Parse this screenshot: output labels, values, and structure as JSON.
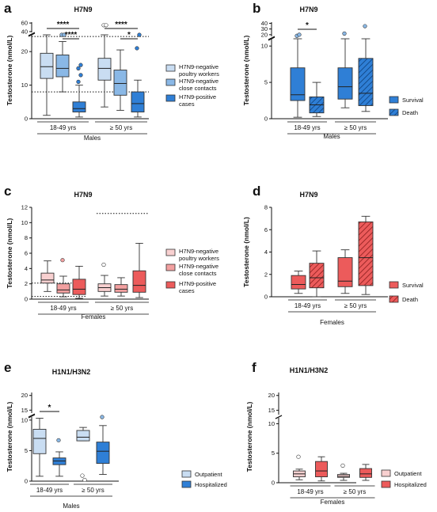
{
  "colors": {
    "blue_light": "#c9ddf2",
    "blue_mid": "#8ab8e6",
    "blue_dark": "#2f7fd6",
    "red_light": "#f8d0d0",
    "red_mid": "#f2a0a0",
    "red_dark": "#ec5b5b",
    "axis": "#111111"
  },
  "chart_data": [
    {
      "panel": "a",
      "type": "box",
      "title": "H7N9",
      "ylabel": "Testosterone (nmol/L)",
      "sex": "Males",
      "yticks_lower": [
        0,
        10,
        20
      ],
      "yticks_upper": [
        40,
        60
      ],
      "groups": [
        "18-49 yrs",
        "≥ 50 yrs"
      ],
      "series_labels": [
        "H7N9-negative poultry workers",
        "H7N9-negative close contacts",
        "H7N9-positive cases"
      ],
      "reference_lines": [
        24.5,
        8
      ],
      "significance": [
        {
          "text": "****",
          "between": [
            "18-49 yrs H7N9-negative poultry workers",
            "18-49 yrs H7N9-positive cases"
          ]
        },
        {
          "text": "****",
          "between": [
            "18-49 yrs H7N9-negative close contacts",
            "18-49 yrs H7N9-positive cases"
          ]
        },
        {
          "text": "****",
          "between": [
            "≥ 50 yrs H7N9-negative poultry workers",
            "≥ 50 yrs H7N9-positive cases"
          ]
        },
        {
          "text": "*",
          "between": [
            "≥ 50 yrs H7N9-negative close contacts",
            "≥ 50 yrs H7N9-positive cases"
          ]
        }
      ],
      "boxes": [
        {
          "group": 0,
          "series": 0,
          "min": 1,
          "q1": 12,
          "median": 15.5,
          "q3": 19.5,
          "max": 28.5,
          "outliers": []
        },
        {
          "group": 0,
          "series": 1,
          "min": 8,
          "q1": 12.5,
          "median": 15,
          "q3": 19,
          "max": 23,
          "outliers": [
            34,
            37
          ]
        },
        {
          "group": 0,
          "series": 2,
          "min": 0.5,
          "q1": 2,
          "median": 3,
          "q3": 5,
          "max": 10,
          "outliers": [
            11,
            13,
            15,
            16
          ]
        },
        {
          "group": 1,
          "series": 0,
          "min": 3.5,
          "q1": 11.5,
          "median": 15,
          "q3": 18,
          "max": 32,
          "outliers": [
            55,
            55
          ]
        },
        {
          "group": 1,
          "series": 1,
          "min": 2.5,
          "q1": 7,
          "median": 10.5,
          "q3": 14.5,
          "max": 20.5,
          "outliers": []
        },
        {
          "group": 1,
          "series": 2,
          "min": 0.5,
          "q1": 2,
          "median": 4.5,
          "q3": 8,
          "max": 11.5,
          "outliers": [
            21,
            36
          ]
        }
      ]
    },
    {
      "panel": "b",
      "type": "box",
      "title": "H7N9",
      "ylabel": "Testosterone (nmol/L)",
      "sex": "Males",
      "yticks_lower": [
        0,
        5,
        10
      ],
      "yticks_upper": [
        20,
        30,
        40
      ],
      "groups": [
        "18-49 yrs",
        "≥ 50 yrs"
      ],
      "series_labels": [
        "Survival",
        "Death"
      ],
      "significance": [
        {
          "text": "*",
          "between": [
            "18-49 yrs Survival",
            "18-49 yrs Death"
          ]
        }
      ],
      "boxes": [
        {
          "group": 0,
          "series": 0,
          "min": 0.2,
          "q1": 2.5,
          "median": 3.3,
          "q3": 7,
          "max": 11,
          "outliers": [
            18,
            20
          ]
        },
        {
          "group": 0,
          "series": 1,
          "min": 0.3,
          "q1": 0.8,
          "median": 1.9,
          "q3": 3,
          "max": 5,
          "outliers": []
        },
        {
          "group": 1,
          "series": 0,
          "min": 1.5,
          "q1": 2.7,
          "median": 4.4,
          "q3": 7,
          "max": 11,
          "outliers": [
            22
          ]
        },
        {
          "group": 1,
          "series": 1,
          "min": 1,
          "q1": 1.8,
          "median": 3.5,
          "q3": 8.3,
          "max": 14,
          "outliers": [
            35
          ]
        }
      ]
    },
    {
      "panel": "c",
      "type": "box",
      "title": "H7N9",
      "ylabel": "Testosterone (nmol/L)",
      "sex": "Females",
      "yticks": [
        0,
        2,
        4,
        6,
        8,
        10,
        12
      ],
      "ylim": [
        0,
        12
      ],
      "groups": [
        "18-49 yrs",
        "≥ 50 yrs"
      ],
      "series_labels": [
        "H7N9-negative poultry workers",
        "H7N9-negative close contacts",
        "H7N9-positive cases"
      ],
      "reference_lines_left": [
        2.1,
        0.35
      ],
      "reference_lines_right": [
        11.2
      ],
      "boxes": [
        {
          "group": 0,
          "series": 0,
          "min": 1,
          "q1": 2.1,
          "median": 2.5,
          "q3": 3.4,
          "max": 5,
          "outliers": []
        },
        {
          "group": 0,
          "series": 1,
          "min": 0.3,
          "q1": 0.8,
          "median": 1.2,
          "q3": 2,
          "max": 3,
          "outliers": [
            5.1
          ]
        },
        {
          "group": 0,
          "series": 2,
          "min": 0.1,
          "q1": 0.6,
          "median": 1.3,
          "q3": 2.6,
          "max": 4.3,
          "outliers": []
        },
        {
          "group": 1,
          "series": 0,
          "min": 0.4,
          "q1": 1,
          "median": 1.5,
          "q3": 2,
          "max": 3.1,
          "outliers": [
            4.5
          ]
        },
        {
          "group": 1,
          "series": 1,
          "min": 0.4,
          "q1": 0.9,
          "median": 1.3,
          "q3": 1.9,
          "max": 2.8,
          "outliers": []
        },
        {
          "group": 1,
          "series": 2,
          "min": 0.2,
          "q1": 0.9,
          "median": 1.8,
          "q3": 3.7,
          "max": 7.3,
          "outliers": []
        }
      ]
    },
    {
      "panel": "d",
      "type": "box",
      "title": "H7N9",
      "ylabel": "Testosterone (nmol/L)",
      "sex": "Females",
      "yticks": [
        0,
        2,
        4,
        6,
        8
      ],
      "ylim": [
        0,
        8
      ],
      "groups": [
        "18-49 yrs",
        "≥ 50 yrs"
      ],
      "series_labels": [
        "Survival",
        "Death"
      ],
      "boxes": [
        {
          "group": 0,
          "series": 0,
          "min": 0.3,
          "q1": 0.7,
          "median": 1.1,
          "q3": 1.9,
          "max": 2.3,
          "outliers": []
        },
        {
          "group": 0,
          "series": 1,
          "min": 0,
          "q1": 0.8,
          "median": 1.7,
          "q3": 3,
          "max": 4.1,
          "outliers": []
        },
        {
          "group": 1,
          "series": 0,
          "min": 0.3,
          "q1": 0.9,
          "median": 1.4,
          "q3": 3.5,
          "max": 4.2,
          "outliers": []
        },
        {
          "group": 1,
          "series": 1,
          "min": 0.2,
          "q1": 1,
          "median": 3.5,
          "q3": 6.7,
          "max": 7.2,
          "outliers": []
        }
      ]
    },
    {
      "panel": "e",
      "type": "box",
      "title": "H1N1/H3N2",
      "ylabel": "Testosterone (nmol/L)",
      "sex": "Males",
      "yticks_lower": [
        0,
        5,
        10
      ],
      "yticks_upper": [
        15,
        20
      ],
      "groups": [
        "18-49 yrs",
        "≥ 50 yrs"
      ],
      "series_labels": [
        "Outpatient",
        "Hospitalized"
      ],
      "significance": [
        {
          "text": "*",
          "between": [
            "18-49 yrs Outpatient",
            "18-49 yrs Hospitalized"
          ]
        }
      ],
      "boxes": [
        {
          "group": 0,
          "series": 0,
          "min": 0.8,
          "q1": 4.5,
          "median": 7,
          "q3": 8.5,
          "max": 10.3,
          "outliers": []
        },
        {
          "group": 0,
          "series": 1,
          "min": 0.8,
          "q1": 2.7,
          "median": 3.3,
          "q3": 3.8,
          "max": 4.8,
          "outliers": [
            6.7
          ]
        },
        {
          "group": 1,
          "series": 0,
          "min": 6.6,
          "q1": 6.6,
          "median": 7.2,
          "q3": 8.3,
          "max": 8.8,
          "outliers": [
            0.9,
            0.2
          ]
        },
        {
          "group": 1,
          "series": 1,
          "min": 1.1,
          "q1": 2.9,
          "median": 4.9,
          "q3": 6.4,
          "max": 9.1,
          "outliers": [
            10.8
          ]
        }
      ]
    },
    {
      "panel": "f",
      "type": "box",
      "title": "H1N1/H3N2",
      "ylabel": "Testosterone (nmol/L)",
      "sex": "Females",
      "yticks_lower": [
        0,
        5,
        10
      ],
      "yticks_upper": [
        15,
        20
      ],
      "groups": [
        "18-49 yrs",
        "≥ 50 yrs"
      ],
      "series_labels": [
        "Outpatient",
        "Hospitalized"
      ],
      "boxes": [
        {
          "group": 0,
          "series": 0,
          "min": 0.5,
          "q1": 1,
          "median": 1.5,
          "q3": 2,
          "max": 2.3,
          "outliers": [
            4.4
          ]
        },
        {
          "group": 0,
          "series": 1,
          "min": 0.3,
          "q1": 1,
          "median": 2,
          "q3": 3.6,
          "max": 4.4,
          "outliers": []
        },
        {
          "group": 1,
          "series": 0,
          "min": 0.4,
          "q1": 0.9,
          "median": 1.1,
          "q3": 1.4,
          "max": 1.6,
          "outliers": [
            2.9
          ]
        },
        {
          "group": 1,
          "series": 1,
          "min": 0.4,
          "q1": 0.9,
          "median": 1.5,
          "q3": 2.4,
          "max": 3.1,
          "outliers": []
        }
      ]
    }
  ]
}
